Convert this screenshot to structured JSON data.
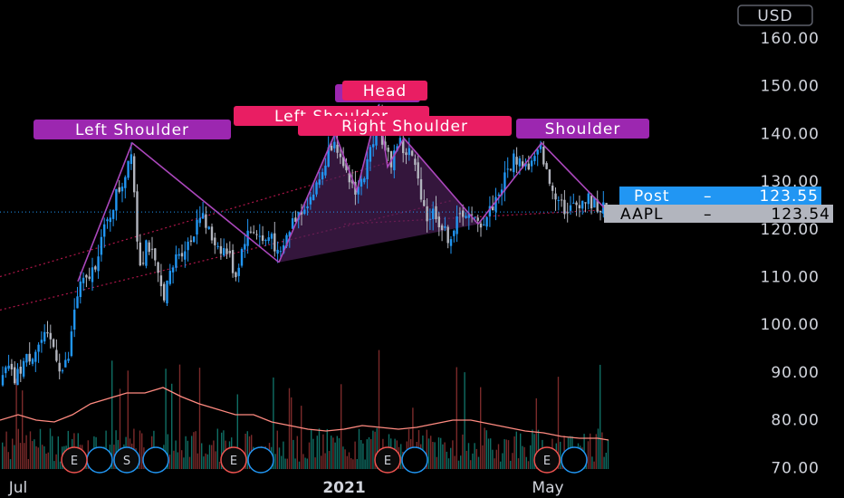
{
  "currency": "USD",
  "labels": {
    "post_label": "Post",
    "post_price": "123.55",
    "ticker": "AAPL",
    "last_price": "123.54"
  },
  "colors": {
    "up": "#2196f3",
    "down": "#b2b5be",
    "pattern_line": "#ab47bc",
    "pattern_fill": "#4a1f55",
    "trend_line": "#e91e63",
    "volume_up": "#0f6e64",
    "volume_down": "#7a2a2a",
    "volume_ma": "#ff8a80",
    "post_badge": "#2196f3",
    "last_badge": "#b2b5be",
    "annotation_purple": "#9c27b0",
    "annotation_pink": "#e91e63"
  },
  "annotations": [
    "Left Shoulder",
    "Left Shoulder",
    "Head",
    "Right Shoulder",
    "Shoulder"
  ],
  "event_markers": [
    "E",
    "S",
    "E",
    "E",
    "E"
  ],
  "chart_data": {
    "type": "candlestick",
    "ylim": [
      70,
      165
    ],
    "y_ticks": [
      "160.00",
      "150.00",
      "140.00",
      "130.00",
      "120.00",
      "110.00",
      "100.00",
      "90.00",
      "80.00",
      "70.00"
    ],
    "x_ticks": [
      "Jul",
      "2021",
      "May"
    ],
    "current_price": 123.54,
    "post_price": 123.55,
    "price_path": [
      [
        0,
        87
      ],
      [
        8,
        91
      ],
      [
        16,
        88
      ],
      [
        26,
        92
      ],
      [
        36,
        94
      ],
      [
        48,
        97
      ],
      [
        58,
        96
      ],
      [
        68,
        90
      ],
      [
        76,
        93
      ],
      [
        82,
        103
      ],
      [
        88,
        108
      ],
      [
        96,
        109
      ],
      [
        104,
        112
      ],
      [
        112,
        118
      ],
      [
        120,
        122
      ],
      [
        128,
        127
      ],
      [
        136,
        130
      ],
      [
        146,
        138
      ],
      [
        150,
        120
      ],
      [
        156,
        112
      ],
      [
        162,
        118
      ],
      [
        170,
        113
      ],
      [
        180,
        106
      ],
      [
        188,
        110
      ],
      [
        196,
        115
      ],
      [
        204,
        116
      ],
      [
        212,
        118
      ],
      [
        220,
        124
      ],
      [
        226,
        121
      ],
      [
        234,
        118
      ],
      [
        244,
        116
      ],
      [
        252,
        115
      ],
      [
        260,
        110
      ],
      [
        270,
        118
      ],
      [
        280,
        120
      ],
      [
        292,
        117
      ],
      [
        300,
        119
      ],
      [
        308,
        113
      ],
      [
        316,
        118
      ],
      [
        324,
        122
      ],
      [
        332,
        124
      ],
      [
        340,
        126
      ],
      [
        348,
        128
      ],
      [
        356,
        132
      ],
      [
        364,
        137
      ],
      [
        370,
        140
      ],
      [
        378,
        132
      ],
      [
        386,
        130
      ],
      [
        394,
        128
      ],
      [
        404,
        132
      ],
      [
        412,
        139
      ],
      [
        418,
        145
      ],
      [
        424,
        136
      ],
      [
        432,
        134
      ],
      [
        440,
        139
      ],
      [
        446,
        136
      ],
      [
        454,
        136
      ],
      [
        460,
        131
      ],
      [
        466,
        127
      ],
      [
        472,
        122
      ],
      [
        480,
        124
      ],
      [
        488,
        120
      ],
      [
        496,
        118
      ],
      [
        504,
        121
      ],
      [
        512,
        124
      ],
      [
        520,
        122
      ],
      [
        528,
        121
      ],
      [
        536,
        122
      ],
      [
        544,
        125
      ],
      [
        552,
        128
      ],
      [
        560,
        132
      ],
      [
        568,
        135
      ],
      [
        576,
        134
      ],
      [
        584,
        133
      ],
      [
        592,
        135
      ],
      [
        598,
        137
      ],
      [
        604,
        131
      ],
      [
        610,
        128
      ],
      [
        618,
        127
      ],
      [
        626,
        123
      ],
      [
        634,
        125
      ],
      [
        642,
        126
      ],
      [
        650,
        126
      ],
      [
        658,
        125
      ],
      [
        666,
        124
      ],
      [
        672,
        123.5
      ]
    ],
    "pattern_lines": [
      [
        [
          86,
          109
        ],
        [
          146,
          138
        ],
        [
          308,
          113
        ]
      ],
      [
        [
          308,
          113
        ],
        [
          370,
          140
        ],
        [
          394,
          128
        ],
        [
          418,
          146
        ],
        [
          428,
          133
        ],
        [
          446,
          139
        ],
        [
          528,
          121
        ]
      ],
      [
        [
          528,
          121
        ],
        [
          598,
          138
        ],
        [
          672,
          123.5
        ]
      ]
    ],
    "trend_lines": [
      [
        [
          0,
          103
        ],
        [
          500,
          126
        ]
      ],
      [
        [
          0,
          110
        ],
        [
          430,
          134
        ]
      ],
      [
        [
          380,
          121
        ],
        [
          670,
          124
        ]
      ]
    ],
    "volume_ma": [
      [
        0,
        0.27
      ],
      [
        20,
        0.3
      ],
      [
        40,
        0.27
      ],
      [
        60,
        0.26
      ],
      [
        80,
        0.3
      ],
      [
        100,
        0.36
      ],
      [
        120,
        0.39
      ],
      [
        140,
        0.42
      ],
      [
        160,
        0.42
      ],
      [
        180,
        0.45
      ],
      [
        200,
        0.4
      ],
      [
        220,
        0.36
      ],
      [
        240,
        0.33
      ],
      [
        260,
        0.3
      ],
      [
        280,
        0.3
      ],
      [
        300,
        0.26
      ],
      [
        320,
        0.24
      ],
      [
        340,
        0.22
      ],
      [
        360,
        0.21
      ],
      [
        380,
        0.22
      ],
      [
        400,
        0.24
      ],
      [
        420,
        0.23
      ],
      [
        440,
        0.22
      ],
      [
        460,
        0.23
      ],
      [
        480,
        0.25
      ],
      [
        500,
        0.27
      ],
      [
        520,
        0.27
      ],
      [
        540,
        0.25
      ],
      [
        560,
        0.23
      ],
      [
        580,
        0.21
      ],
      [
        600,
        0.2
      ],
      [
        620,
        0.18
      ],
      [
        640,
        0.17
      ],
      [
        660,
        0.17
      ],
      [
        672,
        0.16
      ]
    ]
  }
}
